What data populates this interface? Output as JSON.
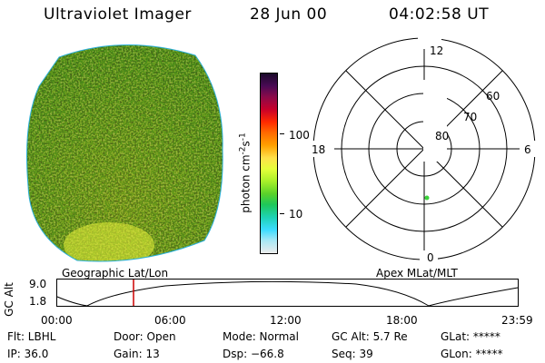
{
  "header": {
    "instrument": "Ultraviolet Imager",
    "date": "28 Jun 00",
    "time": "04:02:58 UT"
  },
  "image_panel": {
    "label": "Geographic Lat/Lon"
  },
  "colorbar": {
    "unit_label": "photon cm",
    "unit_exp1": "-2",
    "unit_s": "s",
    "unit_exp2": "-1",
    "ticks": [
      "100",
      "10"
    ],
    "colors": [
      "#1a0a2a",
      "#4a0a55",
      "#8a0a4a",
      "#c8002a",
      "#ff2a00",
      "#ff6a00",
      "#ffa000",
      "#ffe14a",
      "#e6ff3a",
      "#a8f02a",
      "#5ad22a",
      "#1ec85a",
      "#1ed2b4",
      "#3cdcff",
      "#a8e8f5",
      "#ececec"
    ]
  },
  "polar": {
    "label": "Apex  MLat/MLT",
    "mlt": {
      "top": "12",
      "bottom": "0",
      "left": "18",
      "right": "6"
    },
    "lat_rings": [
      "60",
      "70",
      "80"
    ],
    "marker_color": "#3ad23a"
  },
  "altitude_strip": {
    "ylabel": "GC Alt",
    "y_top": "9.0",
    "y_bottom": "1.8",
    "time_ticks": [
      "00:00",
      "06:00",
      "12:00",
      "18:00",
      "23:59"
    ],
    "cursor_color": "#cc0000"
  },
  "info": {
    "flt": "Flt: LBHL",
    "ip": "IP: 36.0",
    "door": "Door: Open",
    "gain": "Gain: 13",
    "mode": "Mode: Normal",
    "dsp": "Dsp:  −66.8",
    "gc_alt": "GC Alt: 5.7 Re",
    "seq": "Seq: 39",
    "glat": "GLat: *****",
    "glon": "GLon: *****"
  }
}
